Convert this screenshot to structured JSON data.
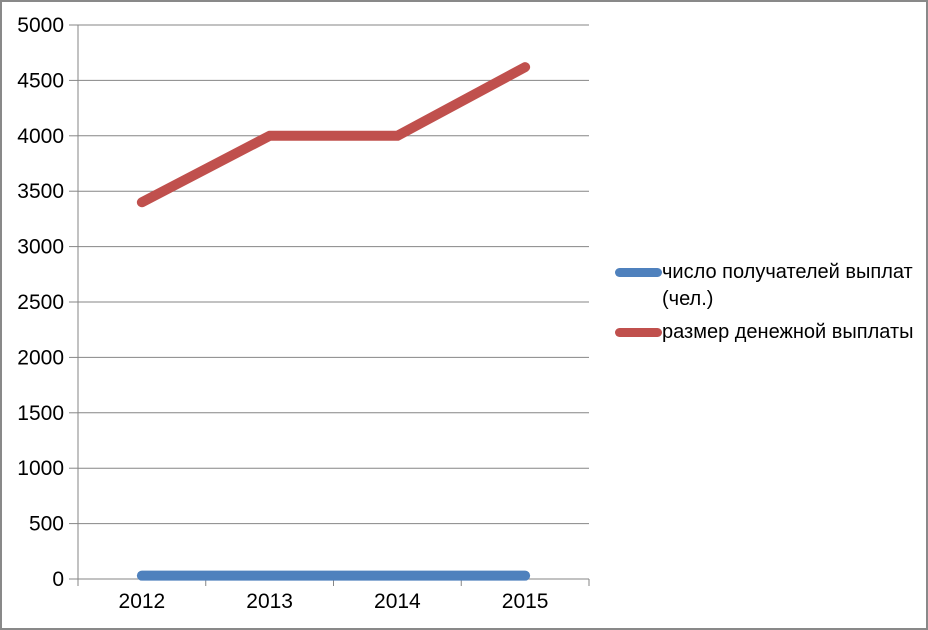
{
  "window": {
    "background_color": "#ffffff",
    "border_color": "#898989"
  },
  "chart_data": {
    "type": "line",
    "title": "",
    "xlabel": "",
    "ylabel": "",
    "categories": [
      "2012",
      "2013",
      "2014",
      "2015"
    ],
    "series": [
      {
        "name": "число получателей выплат (чел.)",
        "color": "#4F81BD",
        "values": [
          30,
          30,
          30,
          30
        ]
      },
      {
        "name": "размер денежной выплаты",
        "color": "#C0504D",
        "values": [
          3400,
          4000,
          4000,
          4620
        ]
      }
    ],
    "ylim": [
      0,
      5000
    ],
    "ytick_step": 500,
    "y_tick_labels": [
      "0",
      "500",
      "1000",
      "1500",
      "2000",
      "2500",
      "3000",
      "3500",
      "4000",
      "4500",
      "5000"
    ],
    "grid": "horizontal",
    "grid_color": "#868686",
    "axis_color": "#868686",
    "label_color": "#000000",
    "legend_position": "right"
  }
}
